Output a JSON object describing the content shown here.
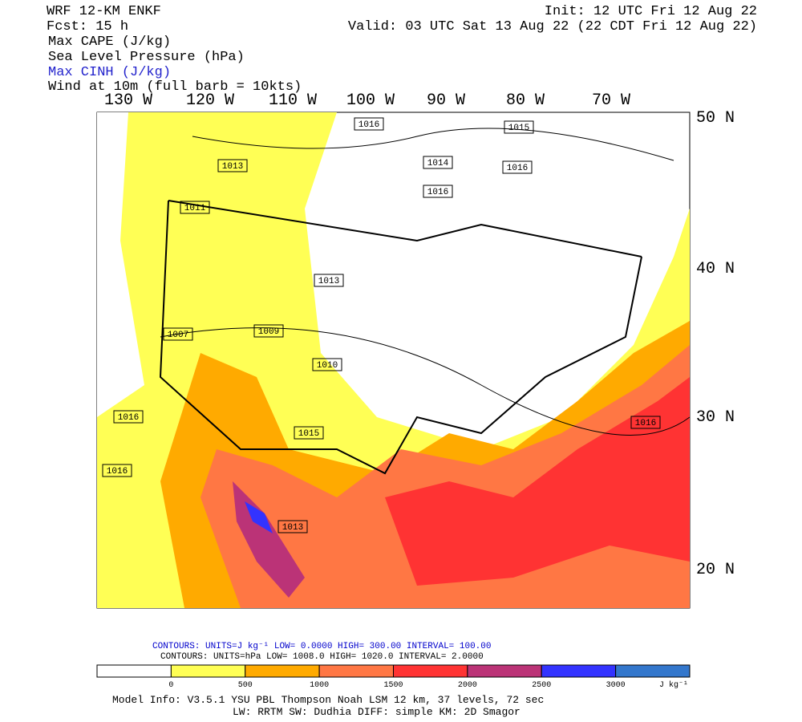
{
  "header": {
    "title": "WRF 12-KM ENKF",
    "fcst": "Fcst:   15 h",
    "fields": [
      "Max CAPE (J/kg)",
      "Sea Level Pressure (hPa)",
      "Max CINH (J/kg)",
      "Wind at 10m (full barb = 10kts)"
    ],
    "init": "Init: 12 UTC Fri 12 Aug 22",
    "valid": "Valid: 03 UTC Sat 13 Aug 22 (22 CDT Fri 12 Aug 22)"
  },
  "map": {
    "lon_labels": [
      "130 W",
      "120 W",
      "110 W",
      "100 W",
      "90 W",
      "80 W",
      "70 W"
    ],
    "lat_labels": [
      "50 N",
      "40 N",
      "30 N",
      "20 N"
    ],
    "pressure_labels": [
      "1016",
      "1014",
      "1016",
      "1016",
      "1013",
      "1011",
      "1007",
      "1009",
      "1010",
      "1016",
      "1015",
      "1016",
      "1015",
      "1013",
      "1013",
      "1016"
    ]
  },
  "contours": {
    "cape": "CONTOURS:  UNITS=J kg⁻¹  LOW=   0.0000        HIGH=  300.00       INTERVAL=    100.00",
    "slp": "CONTOURS:  UNITS=hPa  LOW=  1008.0     HIGH=  1020.0      INTERVAL=   2.0000"
  },
  "colorbar": {
    "colors": [
      "#ffffff",
      "#ffff55",
      "#ffaa00",
      "#ff7744",
      "#ff3333",
      "#bb3377",
      "#3333ff",
      "#3377cc"
    ],
    "ticks": [
      "0",
      "500",
      "1000",
      "1500",
      "2000",
      "2500",
      "3000"
    ],
    "unit": "J kg⁻¹"
  },
  "footer": {
    "line1": "Model Info: V3.5.1         YSU PBL  Thompson     Noah LSM  12 km,   37 levels,   72 sec",
    "line2": "LW: RRTM SW: Dudhia  DIFF: simple KM: 2D Smagor"
  }
}
